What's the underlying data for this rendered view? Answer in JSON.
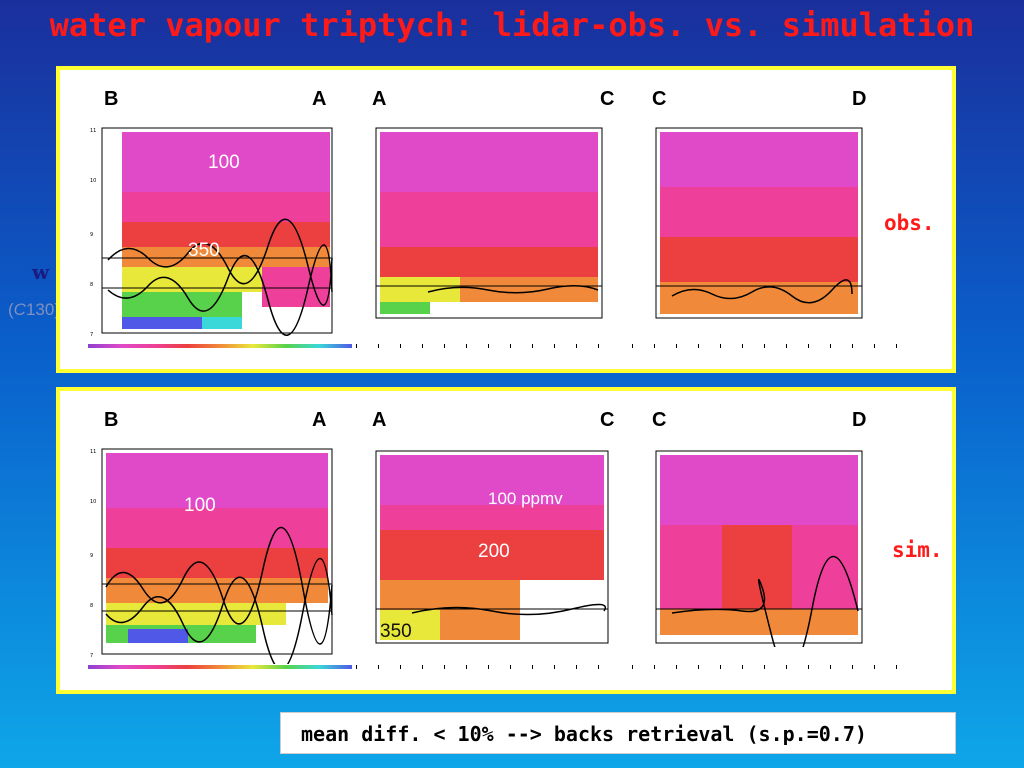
{
  "title": "water vapour triptych:  lidar-obs. vs. simulation",
  "side": {
    "w": "w",
    "c130_prefix": "(",
    "c130_italic": "C",
    "c130_rest": "130)"
  },
  "rows": [
    {
      "label": "obs.",
      "plots": [
        {
          "left": "B",
          "right": "A",
          "annotations": [
            "100",
            "350"
          ]
        },
        {
          "left": "A",
          "right": "C",
          "annotations": []
        },
        {
          "left": "C",
          "right": "D",
          "annotations": []
        }
      ]
    },
    {
      "label": "sim.",
      "plots": [
        {
          "left": "B",
          "right": "A",
          "annotations": [
            "100"
          ]
        },
        {
          "left": "A",
          "right": "C",
          "annotations": [
            "100 ppmv",
            "200",
            "350"
          ]
        },
        {
          "left": "C",
          "right": "D",
          "annotations": []
        }
      ]
    }
  ],
  "footer": "mean diff. < 10% --> backs retrieval (s.p.=0.7)",
  "colors": {
    "magenta": "#e04ac8",
    "pink": "#ee3f9a",
    "red": "#ec3f3f",
    "orange": "#f08a3a",
    "yellow": "#e8e83a",
    "green": "#58d24a",
    "cyan": "#3ad8d8",
    "blue": "#5058e8",
    "accent_red": "#ff1a1a",
    "frame": "#ffff33"
  }
}
